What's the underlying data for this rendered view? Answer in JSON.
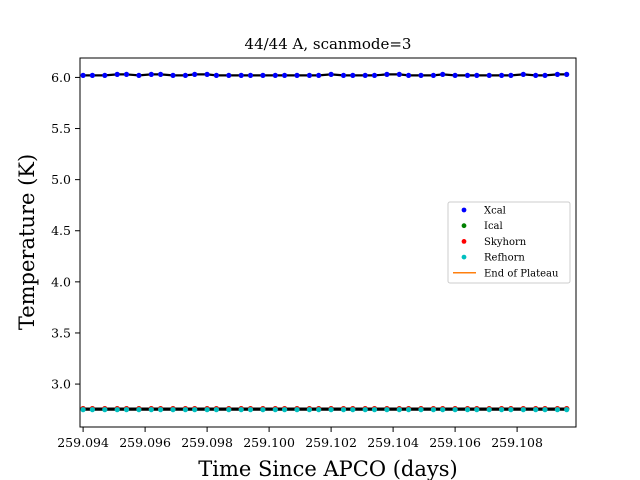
{
  "chart_data": {
    "type": "scatter",
    "title": "44/44 A, scanmode=3",
    "xlabel": "Time Since APCO (days)",
    "ylabel": "Temperature (K)",
    "xlim": [
      259.0939,
      259.1099
    ],
    "ylim": [
      2.58,
      6.19
    ],
    "x_ticks": [
      259.094,
      259.096,
      259.098,
      259.1,
      259.102,
      259.104,
      259.106,
      259.108
    ],
    "x_tick_labels": [
      "259.094",
      "259.096",
      "259.098",
      "259.100",
      "259.102",
      "259.104",
      "259.106",
      "259.108"
    ],
    "y_ticks": [
      3.0,
      3.5,
      4.0,
      4.5,
      5.0,
      5.5,
      6.0
    ],
    "y_tick_labels": [
      "3.0",
      "3.5",
      "4.0",
      "4.5",
      "5.0",
      "5.5",
      "6.0"
    ],
    "grid": false,
    "legend_position": "center-right",
    "series": [
      {
        "name": "Xcal",
        "color": "#0000ff",
        "marker": "dot",
        "x": [
          259.094,
          259.0943,
          259.0947,
          259.0951,
          259.0954,
          259.0958,
          259.0962,
          259.0965,
          259.0969,
          259.0973,
          259.0976,
          259.098,
          259.0983,
          259.0987,
          259.0991,
          259.0994,
          259.0998,
          259.1002,
          259.1005,
          259.1009,
          259.1013,
          259.1016,
          259.102,
          259.1024,
          259.1027,
          259.1031,
          259.1034,
          259.1038,
          259.1042,
          259.1045,
          259.1049,
          259.1053,
          259.1056,
          259.106,
          259.1064,
          259.1067,
          259.1071,
          259.1075,
          259.1078,
          259.1082,
          259.1086,
          259.1089,
          259.1093,
          259.1096
        ],
        "y": [
          6.02,
          6.02,
          6.02,
          6.03,
          6.03,
          6.02,
          6.03,
          6.03,
          6.02,
          6.02,
          6.03,
          6.03,
          6.02,
          6.02,
          6.02,
          6.02,
          6.02,
          6.02,
          6.02,
          6.02,
          6.02,
          6.02,
          6.03,
          6.02,
          6.02,
          6.02,
          6.02,
          6.03,
          6.03,
          6.02,
          6.02,
          6.02,
          6.03,
          6.02,
          6.02,
          6.02,
          6.02,
          6.02,
          6.02,
          6.03,
          6.02,
          6.02,
          6.03,
          6.03
        ]
      },
      {
        "name": "Ical",
        "color": "#008000",
        "marker": "dot",
        "x": [
          259.094,
          259.0943,
          259.0947,
          259.0951,
          259.0954,
          259.0958,
          259.0962,
          259.0965,
          259.0969,
          259.0973,
          259.0976,
          259.098,
          259.0983,
          259.0987,
          259.0991,
          259.0994,
          259.0998,
          259.1002,
          259.1005,
          259.1009,
          259.1013,
          259.1016,
          259.102,
          259.1024,
          259.1027,
          259.1031,
          259.1034,
          259.1038,
          259.1042,
          259.1045,
          259.1049,
          259.1053,
          259.1056,
          259.106,
          259.1064,
          259.1067,
          259.1071,
          259.1075,
          259.1078,
          259.1082,
          259.1086,
          259.1089,
          259.1093,
          259.1096
        ],
        "y": [
          2.76,
          2.76,
          2.76,
          2.76,
          2.76,
          2.76,
          2.76,
          2.76,
          2.76,
          2.76,
          2.76,
          2.76,
          2.76,
          2.76,
          2.76,
          2.76,
          2.76,
          2.76,
          2.76,
          2.76,
          2.76,
          2.76,
          2.76,
          2.76,
          2.76,
          2.76,
          2.76,
          2.76,
          2.76,
          2.76,
          2.76,
          2.76,
          2.76,
          2.76,
          2.76,
          2.76,
          2.76,
          2.76,
          2.76,
          2.76,
          2.76,
          2.76,
          2.76,
          2.76
        ]
      },
      {
        "name": "Skyhorn",
        "color": "#ff0000",
        "marker": "dot",
        "x": [
          259.094,
          259.0943,
          259.0947,
          259.0951,
          259.0954,
          259.0958,
          259.0962,
          259.0965,
          259.0969,
          259.0973,
          259.0976,
          259.098,
          259.0983,
          259.0987,
          259.0991,
          259.0994,
          259.0998,
          259.1002,
          259.1005,
          259.1009,
          259.1013,
          259.1016,
          259.102,
          259.1024,
          259.1027,
          259.1031,
          259.1034,
          259.1038,
          259.1042,
          259.1045,
          259.1049,
          259.1053,
          259.1056,
          259.106,
          259.1064,
          259.1067,
          259.1071,
          259.1075,
          259.1078,
          259.1082,
          259.1086,
          259.1089,
          259.1093,
          259.1096
        ],
        "y": [
          2.76,
          2.76,
          2.76,
          2.76,
          2.76,
          2.76,
          2.76,
          2.76,
          2.76,
          2.76,
          2.76,
          2.76,
          2.76,
          2.76,
          2.76,
          2.76,
          2.76,
          2.76,
          2.76,
          2.76,
          2.76,
          2.76,
          2.76,
          2.76,
          2.76,
          2.76,
          2.76,
          2.76,
          2.76,
          2.76,
          2.76,
          2.76,
          2.76,
          2.76,
          2.76,
          2.76,
          2.76,
          2.76,
          2.76,
          2.76,
          2.76,
          2.76,
          2.76,
          2.76
        ]
      },
      {
        "name": "Refhorn",
        "color": "#00bfbf",
        "marker": "dot",
        "x": [
          259.094,
          259.0943,
          259.0947,
          259.0951,
          259.0954,
          259.0958,
          259.0962,
          259.0965,
          259.0969,
          259.0973,
          259.0976,
          259.098,
          259.0983,
          259.0987,
          259.0991,
          259.0994,
          259.0998,
          259.1002,
          259.1005,
          259.1009,
          259.1013,
          259.1016,
          259.102,
          259.1024,
          259.1027,
          259.1031,
          259.1034,
          259.1038,
          259.1042,
          259.1045,
          259.1049,
          259.1053,
          259.1056,
          259.106,
          259.1064,
          259.1067,
          259.1071,
          259.1075,
          259.1078,
          259.1082,
          259.1086,
          259.1089,
          259.1093,
          259.1096
        ],
        "y": [
          2.75,
          2.75,
          2.75,
          2.75,
          2.75,
          2.75,
          2.75,
          2.75,
          2.75,
          2.75,
          2.75,
          2.75,
          2.75,
          2.75,
          2.75,
          2.75,
          2.75,
          2.75,
          2.75,
          2.75,
          2.75,
          2.75,
          2.75,
          2.75,
          2.75,
          2.75,
          2.75,
          2.75,
          2.75,
          2.75,
          2.75,
          2.75,
          2.75,
          2.75,
          2.75,
          2.75,
          2.75,
          2.75,
          2.75,
          2.75,
          2.75,
          2.75,
          2.75,
          2.75
        ]
      }
    ],
    "legend": [
      {
        "label": "Xcal",
        "color": "#0000ff",
        "kind": "dot"
      },
      {
        "label": "Ical",
        "color": "#008000",
        "kind": "dot"
      },
      {
        "label": "Skyhorn",
        "color": "#ff0000",
        "kind": "dot"
      },
      {
        "label": "Refhorn",
        "color": "#00bfbf",
        "kind": "dot"
      },
      {
        "label": "End of Plateau",
        "color": "#ff7f0e",
        "kind": "line"
      }
    ]
  }
}
